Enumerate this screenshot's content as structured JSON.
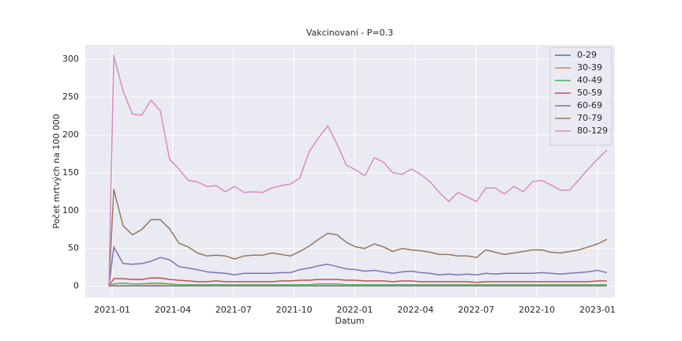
{
  "chart_data": {
    "type": "line",
    "title": "Vakcinovaní - P=0.3",
    "xlabel": "Datum",
    "ylabel": "Počet mrtvých na 100 000",
    "x": [
      -0.16,
      0.08,
      0.54,
      1.0,
      1.46,
      1.92,
      2.38,
      2.84,
      3.3,
      3.76,
      4.22,
      4.68,
      5.14,
      5.6,
      6.06,
      6.52,
      6.98,
      7.44,
      7.9,
      8.36,
      8.82,
      9.28,
      9.74,
      10.2,
      10.66,
      11.12,
      11.58,
      12.04,
      12.5,
      12.96,
      13.42,
      13.88,
      14.34,
      14.8,
      15.26,
      15.72,
      16.18,
      16.64,
      17.1,
      17.56,
      18.02,
      18.48,
      18.94,
      19.4,
      19.86,
      20.32,
      20.78,
      21.24,
      21.7,
      22.16,
      22.62,
      23.08,
      23.54,
      24.0,
      24.46
    ],
    "series": [
      {
        "name": "0-29",
        "color": "#4c72b0",
        "values": [
          0,
          0.5,
          0.4,
          0.4,
          0.4,
          0.5,
          0.5,
          0.4,
          0.4,
          0.3,
          0.3,
          0.3,
          0.3,
          0.3,
          0.3,
          0.3,
          0.3,
          0.3,
          0.3,
          0.3,
          0.3,
          0.3,
          0.4,
          0.4,
          0.4,
          0.4,
          0.4,
          0.3,
          0.3,
          0.3,
          0.3,
          0.3,
          0.3,
          0.3,
          0.3,
          0.3,
          0.3,
          0.3,
          0.3,
          0.3,
          0.3,
          0.3,
          0.3,
          0.3,
          0.3,
          0.3,
          0.3,
          0.3,
          0.3,
          0.3,
          0.3,
          0.3,
          0.3,
          0.3,
          0.3
        ]
      },
      {
        "name": "30-39",
        "color": "#dd8452",
        "values": [
          0,
          1,
          1,
          1,
          1,
          1.5,
          1.5,
          1,
          1,
          1,
          1,
          1,
          1,
          1,
          1,
          1,
          1,
          1,
          1,
          1,
          1,
          1,
          1,
          1,
          1,
          1,
          1,
          1,
          1,
          1,
          1,
          1,
          1,
          1,
          1,
          1,
          1,
          1,
          1,
          1,
          1,
          1,
          1,
          1,
          1,
          1,
          1,
          1,
          1,
          1,
          1,
          1,
          1,
          1,
          1
        ]
      },
      {
        "name": "40-49",
        "color": "#55a868",
        "values": [
          0,
          3,
          4,
          3,
          3,
          4,
          4,
          3,
          2,
          2,
          2,
          2,
          2,
          2,
          2,
          2,
          2,
          2,
          2,
          2,
          2,
          2,
          2,
          3,
          3,
          3,
          2,
          2,
          2,
          2,
          2,
          2,
          2,
          2,
          2,
          2,
          2,
          2,
          2,
          2,
          2,
          2,
          2,
          2,
          2,
          2,
          2,
          2,
          2,
          2,
          2,
          2,
          2,
          2,
          2
        ]
      },
      {
        "name": "50-59",
        "color": "#c44e52",
        "values": [
          0,
          10,
          10,
          9,
          9,
          11,
          11,
          9,
          8,
          7,
          6,
          6,
          7,
          6,
          6,
          6,
          6,
          6,
          6,
          7,
          7,
          8,
          8,
          9,
          9,
          9,
          8,
          8,
          7,
          7,
          7,
          6,
          7,
          7,
          6,
          6,
          6,
          6,
          6,
          6,
          5,
          6,
          6,
          6,
          6,
          6,
          6,
          6,
          6,
          6,
          6,
          6,
          6,
          7,
          7
        ]
      },
      {
        "name": "60-69",
        "color": "#8172b3",
        "values": [
          0,
          52,
          30,
          29,
          30,
          33,
          38,
          35,
          26,
          24,
          22,
          19,
          18,
          17,
          15,
          17,
          17,
          17,
          17,
          18,
          18,
          22,
          24,
          27,
          29,
          26,
          23,
          22,
          20,
          21,
          19,
          17,
          19,
          20,
          18,
          17,
          15,
          16,
          15,
          16,
          15,
          17,
          16,
          17,
          17,
          17,
          17,
          18,
          17,
          16,
          17,
          18,
          19,
          21,
          18
        ]
      },
      {
        "name": "70-79",
        "color": "#937860",
        "values": [
          0,
          128,
          80,
          68,
          75,
          88,
          88,
          76,
          57,
          52,
          44,
          40,
          41,
          40,
          36,
          40,
          41,
          41,
          44,
          42,
          40,
          46,
          53,
          62,
          70,
          68,
          58,
          52,
          50,
          56,
          52,
          46,
          50,
          48,
          47,
          45,
          42,
          42,
          40,
          40,
          38,
          48,
          45,
          42,
          44,
          46,
          48,
          48,
          45,
          44,
          46,
          48,
          52,
          56,
          62
        ]
      },
      {
        "name": "80-129",
        "color": "#da8bc3",
        "values": [
          0,
          305,
          258,
          228,
          226,
          246,
          232,
          168,
          155,
          140,
          138,
          132,
          133,
          125,
          132,
          124,
          125,
          124,
          130,
          133,
          135,
          143,
          178,
          196,
          212,
          188,
          160,
          154,
          146,
          170,
          164,
          150,
          148,
          155,
          148,
          138,
          124,
          112,
          124,
          118,
          112,
          130,
          130,
          122,
          132,
          125,
          138,
          140,
          134,
          127,
          127,
          141,
          155,
          168,
          180
        ]
      }
    ],
    "xlim": [
      -1.33,
      24.86
    ],
    "ylim": [
      -15,
      319
    ],
    "xticks": [
      {
        "value": 0,
        "label": "2021-01"
      },
      {
        "value": 3,
        "label": "2021-04"
      },
      {
        "value": 6,
        "label": "2021-07"
      },
      {
        "value": 9,
        "label": "2021-10"
      },
      {
        "value": 12,
        "label": "2022-01"
      },
      {
        "value": 15,
        "label": "2022-04"
      },
      {
        "value": 18,
        "label": "2022-07"
      },
      {
        "value": 21,
        "label": "2022-10"
      },
      {
        "value": 24,
        "label": "2023-01"
      }
    ],
    "yticks": [
      0,
      50,
      100,
      150,
      200,
      250,
      300
    ],
    "grid": true,
    "legend": "upper right"
  }
}
